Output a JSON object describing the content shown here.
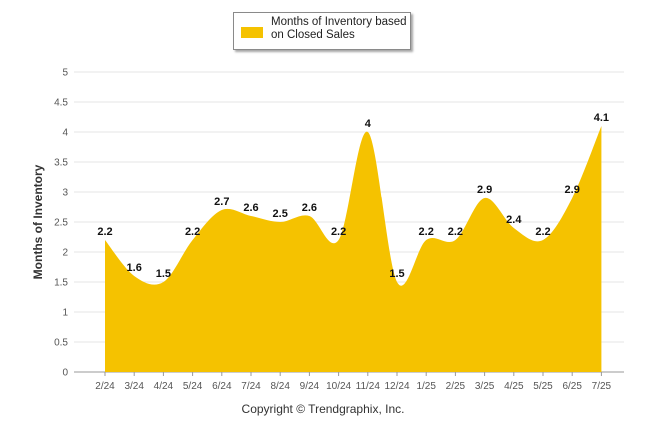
{
  "chart_data": {
    "type": "area",
    "categories": [
      "2/24",
      "3/24",
      "4/24",
      "5/24",
      "6/24",
      "7/24",
      "8/24",
      "9/24",
      "10/24",
      "11/24",
      "12/24",
      "1/25",
      "2/25",
      "3/25",
      "4/25",
      "5/25",
      "6/25",
      "7/25"
    ],
    "series": [
      {
        "name": "Months of Inventory based on Closed Sales",
        "values": [
          2.2,
          1.6,
          1.5,
          2.2,
          2.7,
          2.6,
          2.5,
          2.6,
          2.2,
          4,
          1.5,
          2.2,
          2.2,
          2.9,
          2.4,
          2.2,
          2.9,
          4.1
        ]
      }
    ],
    "data_labels": [
      "2.2",
      "1.6",
      "1.5",
      "2.2",
      "2.7",
      "2.6",
      "2.5",
      "2.6",
      "2.2",
      "4",
      "1.5",
      "2.2",
      "2.2",
      "2.9",
      "2.4",
      "2.2",
      "2.9",
      "4.1"
    ],
    "ylabel": "Months of Inventory",
    "ylim": [
      0,
      5
    ],
    "yticks": [
      "0",
      "0.5",
      "1",
      "1.5",
      "2",
      "2.5",
      "3",
      "3.5",
      "4",
      "4.5",
      "5"
    ],
    "grid": true,
    "legend_position": "top-center",
    "color": "#F5C200"
  },
  "legend": {
    "label": "Months of Inventory based on Closed Sales"
  },
  "footer": {
    "copyright": "Copyright © Trendgraphix, Inc."
  }
}
